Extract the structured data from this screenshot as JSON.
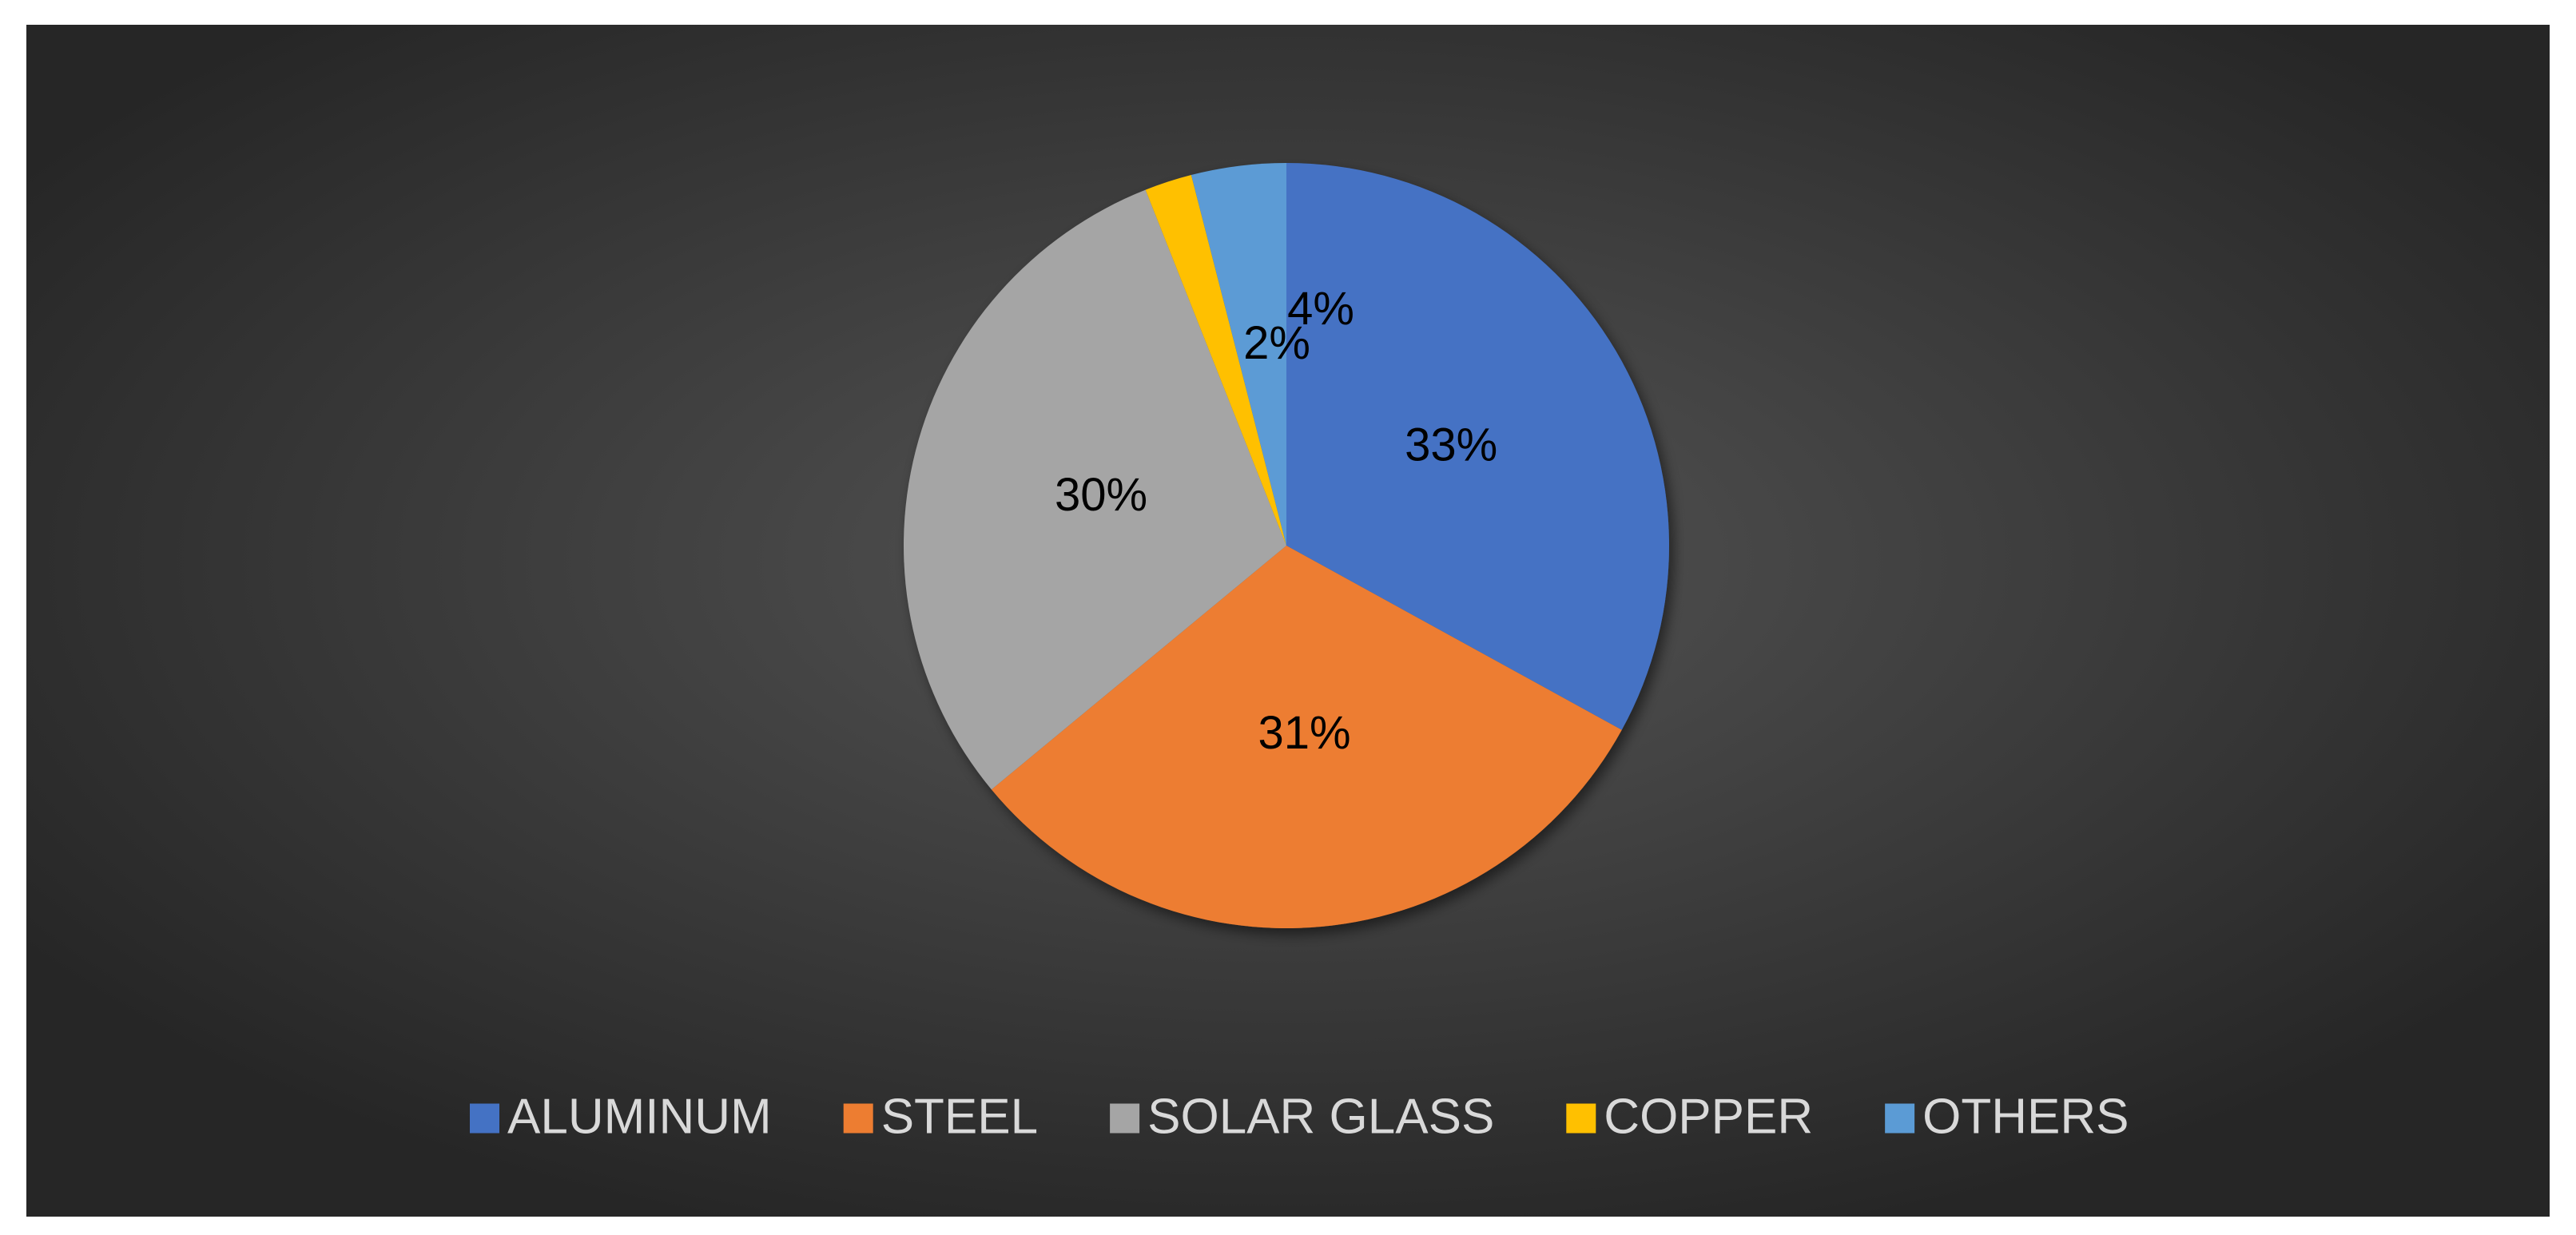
{
  "chart_data": {
    "type": "pie",
    "categories": [
      "ALUMINUM",
      "STEEL",
      "SOLAR GLASS",
      "COPPER",
      "OTHERS"
    ],
    "values": [
      33,
      31,
      30,
      2,
      4
    ],
    "value_labels": [
      "33%",
      "31%",
      "30%",
      "2%",
      "4%"
    ],
    "colors": [
      "#4472c4",
      "#ed7d31",
      "#a5a5a5",
      "#ffc000",
      "#5b9bd5"
    ],
    "legend": "bottom"
  }
}
